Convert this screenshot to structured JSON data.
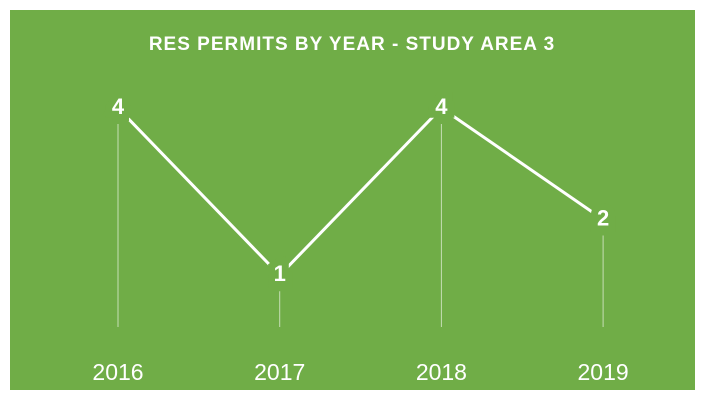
{
  "chart_data": {
    "type": "line",
    "title": "RES PERMITS BY YEAR - STUDY AREA 3",
    "categories": [
      "2016",
      "2017",
      "2018",
      "2019"
    ],
    "values": [
      4,
      1,
      4,
      2
    ],
    "color": "#ffffff",
    "background": "#70ad47"
  }
}
